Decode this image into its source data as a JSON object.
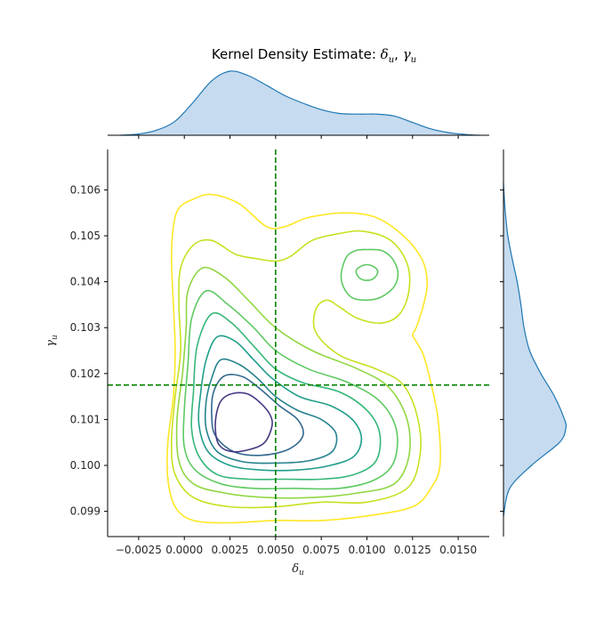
{
  "chart_data": {
    "type": "kde-joint",
    "title": "Kernel Density Estimate: δ_u, γ_u",
    "title_display": {
      "prefix": "Kernel Density Estimate: ",
      "var1": "δ",
      "var2": "γ",
      "sub": "u",
      "sep": ", "
    },
    "xlabel": "δ_u",
    "ylabel": "γ_u",
    "xlim": [
      -0.0042,
      0.0167
    ],
    "ylim": [
      0.09845,
      0.10688
    ],
    "xticks": [
      -0.0025,
      0.0,
      0.0025,
      0.005,
      0.0075,
      0.01,
      0.0125,
      0.015
    ],
    "xtick_labels": [
      "−0.0025",
      "0.0000",
      "0.0025",
      "0.0050",
      "0.0075",
      "0.0100",
      "0.0125",
      "0.0150"
    ],
    "yticks": [
      0.099,
      0.1,
      0.101,
      0.102,
      0.103,
      0.104,
      0.105,
      0.106
    ],
    "ytick_labels": [
      "0.099",
      "0.100",
      "0.101",
      "0.102",
      "0.103",
      "0.104",
      "0.105",
      "0.106"
    ],
    "reference_lines": {
      "vertical_x": 0.005,
      "horizontal_y": 0.10175,
      "color": "#008000",
      "style": "dashed"
    },
    "grid": false,
    "marginal_x": {
      "x": [
        -0.0035,
        -0.0025,
        -0.0015,
        -0.0005,
        0.0005,
        0.0015,
        0.0025,
        0.0035,
        0.0045,
        0.0055,
        0.0065,
        0.0075,
        0.0085,
        0.0095,
        0.0105,
        0.0115,
        0.0125,
        0.0135,
        0.0145,
        0.0155,
        0.0162
      ],
      "density": [
        0.0,
        0.02,
        0.08,
        0.22,
        0.52,
        0.85,
        1.0,
        0.93,
        0.78,
        0.62,
        0.5,
        0.4,
        0.34,
        0.33,
        0.33,
        0.3,
        0.2,
        0.1,
        0.04,
        0.01,
        0.0
      ]
    },
    "marginal_y": {
      "y": [
        0.0989,
        0.0995,
        0.1,
        0.1005,
        0.1008,
        0.101,
        0.1015,
        0.102,
        0.1025,
        0.103,
        0.1035,
        0.104,
        0.1045,
        0.105,
        0.1055,
        0.106,
        0.10615
      ],
      "density": [
        0.0,
        0.1,
        0.45,
        0.9,
        1.0,
        0.98,
        0.82,
        0.6,
        0.42,
        0.33,
        0.28,
        0.22,
        0.14,
        0.07,
        0.03,
        0.005,
        0.0
      ]
    },
    "density_series_color": "#1f77b4",
    "density_fill_color": "#c6dbef",
    "contour_levels": [
      {
        "level": 1,
        "color": "#fde725",
        "points": [
          [
            0.0005,
            0.1058
          ],
          [
            0.0015,
            0.1059
          ],
          [
            0.003,
            0.1057
          ],
          [
            0.0045,
            0.1052
          ],
          [
            0.0055,
            0.1052
          ],
          [
            0.0068,
            0.1054
          ],
          [
            0.0088,
            0.1055
          ],
          [
            0.0105,
            0.1054
          ],
          [
            0.012,
            0.105
          ],
          [
            0.013,
            0.1045
          ],
          [
            0.0133,
            0.104
          ],
          [
            0.0131,
            0.1035
          ],
          [
            0.0127,
            0.103
          ],
          [
            0.0125,
            0.10285
          ],
          [
            0.0127,
            0.1027
          ],
          [
            0.0131,
            0.1024
          ],
          [
            0.0135,
            0.1018
          ],
          [
            0.0139,
            0.101
          ],
          [
            0.014,
            0.1
          ],
          [
            0.0135,
            0.0995
          ],
          [
            0.0125,
            0.0991
          ],
          [
            0.01,
            0.0989
          ],
          [
            0.0075,
            0.0988
          ],
          [
            0.005,
            0.0988
          ],
          [
            0.0025,
            0.09875
          ],
          [
            0.0005,
            0.0988
          ],
          [
            -0.0005,
            0.0991
          ],
          [
            -0.0009,
            0.0997
          ],
          [
            -0.0009,
            0.1005
          ],
          [
            -0.0006,
            0.1015
          ],
          [
            -0.0005,
            0.1025
          ],
          [
            -0.0006,
            0.1035
          ],
          [
            -0.0007,
            0.1045
          ],
          [
            -0.0006,
            0.1052
          ],
          [
            -0.0003,
            0.1056
          ]
        ]
      },
      {
        "level": 2,
        "color": "#c8e020",
        "points": [
          [
            0.0005,
            0.1048
          ],
          [
            0.0015,
            0.1049
          ],
          [
            0.0028,
            0.1046
          ],
          [
            0.004,
            0.1045
          ],
          [
            0.005,
            0.10445
          ],
          [
            0.0058,
            0.10455
          ],
          [
            0.007,
            0.1049
          ],
          [
            0.0085,
            0.10505
          ],
          [
            0.0098,
            0.1051
          ],
          [
            0.0113,
            0.1049
          ],
          [
            0.0122,
            0.1044
          ],
          [
            0.0123,
            0.1038
          ],
          [
            0.0118,
            0.1033
          ],
          [
            0.0108,
            0.1031
          ],
          [
            0.0095,
            0.1032
          ],
          [
            0.0085,
            0.10345
          ],
          [
            0.0078,
            0.1036
          ],
          [
            0.0072,
            0.1034
          ],
          [
            0.0072,
            0.1029
          ],
          [
            0.0085,
            0.1024
          ],
          [
            0.0105,
            0.1021
          ],
          [
            0.012,
            0.10175
          ],
          [
            0.0128,
            0.101
          ],
          [
            0.0129,
            0.1002
          ],
          [
            0.0122,
            0.0995
          ],
          [
            0.01,
            0.0992
          ],
          [
            0.0075,
            0.0992
          ],
          [
            0.005,
            0.0991
          ],
          [
            0.0025,
            0.0991
          ],
          [
            0.0005,
            0.0993
          ],
          [
            -0.0005,
            0.0998
          ],
          [
            -0.0007,
            0.1005
          ],
          [
            -0.0005,
            0.1015
          ],
          [
            -0.0002,
            0.1025
          ],
          [
            -0.0003,
            0.1035
          ],
          [
            -0.0002,
            0.1043
          ]
        ]
      },
      {
        "level": 3,
        "color": "#90d743",
        "points": [
          [
            0.001,
            0.1043
          ],
          [
            0.0022,
            0.1041
          ],
          [
            0.0035,
            0.1036
          ],
          [
            0.005,
            0.103
          ],
          [
            0.007,
            0.1025
          ],
          [
            0.0095,
            0.1021
          ],
          [
            0.0112,
            0.1017
          ],
          [
            0.0122,
            0.101
          ],
          [
            0.0123,
            0.1002
          ],
          [
            0.0115,
            0.0996
          ],
          [
            0.0095,
            0.0994
          ],
          [
            0.007,
            0.0993
          ],
          [
            0.0045,
            0.0993
          ],
          [
            0.0022,
            0.0994
          ],
          [
            0.0005,
            0.0996
          ],
          [
            -0.0003,
            0.1001
          ],
          [
            -0.0004,
            0.101
          ],
          [
            -0.0001,
            0.102
          ],
          [
            0.0001,
            0.103
          ],
          [
            0.0002,
            0.1038
          ]
        ]
      },
      {
        "level": 4,
        "color": "#5ec962",
        "points": [
          [
            0.0012,
            0.1038
          ],
          [
            0.0024,
            0.1035
          ],
          [
            0.0038,
            0.103
          ],
          [
            0.005,
            0.1025
          ],
          [
            0.0068,
            0.1021
          ],
          [
            0.009,
            0.1018
          ],
          [
            0.0107,
            0.1014
          ],
          [
            0.0116,
            0.1008
          ],
          [
            0.0115,
            0.1001
          ],
          [
            0.0105,
            0.0997
          ],
          [
            0.0085,
            0.0995
          ],
          [
            0.006,
            0.0995
          ],
          [
            0.0038,
            0.0995
          ],
          [
            0.002,
            0.0996
          ],
          [
            0.0006,
            0.0999
          ],
          [
            0.0,
            0.1004
          ],
          [
            0.0,
            0.1012
          ],
          [
            0.0002,
            0.1022
          ],
          [
            0.0004,
            0.1032
          ]
        ]
      },
      {
        "level": 5,
        "color": "#35b779",
        "points": [
          [
            0.0015,
            0.1033
          ],
          [
            0.0026,
            0.1031
          ],
          [
            0.0038,
            0.1026
          ],
          [
            0.005,
            0.1021
          ],
          [
            0.0065,
            0.1018
          ],
          [
            0.0085,
            0.1016
          ],
          [
            0.01,
            0.1012
          ],
          [
            0.0107,
            0.1007
          ],
          [
            0.0105,
            0.1001
          ],
          [
            0.0093,
            0.0998
          ],
          [
            0.0075,
            0.0997
          ],
          [
            0.0055,
            0.0997
          ],
          [
            0.0035,
            0.0997
          ],
          [
            0.0018,
            0.0998
          ],
          [
            0.0008,
            0.1002
          ],
          [
            0.0004,
            0.1008
          ],
          [
            0.0005,
            0.1016
          ],
          [
            0.0007,
            0.1026
          ]
        ]
      },
      {
        "level": 6,
        "color": "#1f9e89",
        "points": [
          [
            0.0018,
            0.1028
          ],
          [
            0.0028,
            0.1027
          ],
          [
            0.0038,
            0.1023
          ],
          [
            0.0048,
            0.1019
          ],
          [
            0.0063,
            0.1015
          ],
          [
            0.008,
            0.1013
          ],
          [
            0.0092,
            0.101
          ],
          [
            0.0097,
            0.1006
          ],
          [
            0.0093,
            0.1002
          ],
          [
            0.008,
            0.1
          ],
          [
            0.0062,
            0.0999
          ],
          [
            0.0042,
            0.0999
          ],
          [
            0.0025,
            0.1
          ],
          [
            0.0013,
            0.1003
          ],
          [
            0.0008,
            0.1009
          ],
          [
            0.0009,
            0.1016
          ],
          [
            0.0012,
            0.1023
          ]
        ]
      },
      {
        "level": 7,
        "color": "#26828e",
        "points": [
          [
            0.002,
            0.1023
          ],
          [
            0.003,
            0.1022
          ],
          [
            0.004,
            0.1019
          ],
          [
            0.005,
            0.1015
          ],
          [
            0.0062,
            0.1012
          ],
          [
            0.0075,
            0.101
          ],
          [
            0.0083,
            0.1007
          ],
          [
            0.0081,
            0.1003
          ],
          [
            0.0068,
            0.1001
          ],
          [
            0.005,
            0.10005
          ],
          [
            0.0032,
            0.10008
          ],
          [
            0.0018,
            0.1003
          ],
          [
            0.0012,
            0.1008
          ],
          [
            0.0012,
            0.1014
          ],
          [
            0.0015,
            0.1019
          ]
        ]
      },
      {
        "level": 8,
        "color": "#31688e",
        "points": [
          [
            0.0022,
            0.10195
          ],
          [
            0.0032,
            0.10193
          ],
          [
            0.0042,
            0.10165
          ],
          [
            0.0052,
            0.1013
          ],
          [
            0.0062,
            0.101
          ],
          [
            0.0065,
            0.10065
          ],
          [
            0.0057,
            0.10035
          ],
          [
            0.0042,
            0.10022
          ],
          [
            0.0027,
            0.1003
          ],
          [
            0.0017,
            0.10065
          ],
          [
            0.0015,
            0.1011
          ],
          [
            0.0016,
            0.1016
          ]
        ]
      },
      {
        "level": 9,
        "color": "#443983",
        "points": [
          [
            0.0027,
            0.10157
          ],
          [
            0.0035,
            0.10155
          ],
          [
            0.0042,
            0.10135
          ],
          [
            0.0047,
            0.1011
          ],
          [
            0.0048,
            0.10085
          ],
          [
            0.0044,
            0.1005
          ],
          [
            0.0036,
            0.10035
          ],
          [
            0.0026,
            0.1003
          ],
          [
            0.0019,
            0.10045
          ],
          [
            0.0017,
            0.1008
          ],
          [
            0.0018,
            0.1012
          ],
          [
            0.0021,
            0.10145
          ]
        ]
      },
      {
        "level": 5,
        "color": "#5ec962",
        "points": [
          [
            0.01,
            0.1047
          ],
          [
            0.0108,
            0.10468
          ],
          [
            0.0114,
            0.1045
          ],
          [
            0.0117,
            0.1042
          ],
          [
            0.0115,
            0.1039
          ],
          [
            0.0108,
            0.10367
          ],
          [
            0.01,
            0.1036
          ],
          [
            0.0092,
            0.10365
          ],
          [
            0.0087,
            0.1039
          ],
          [
            0.0086,
            0.1042
          ],
          [
            0.0089,
            0.10455
          ],
          [
            0.0094,
            0.10468
          ]
        ]
      },
      {
        "level": 9,
        "color": "#5ec962",
        "points": [
          [
            0.01,
            0.10437
          ],
          [
            0.0104,
            0.10432
          ],
          [
            0.0106,
            0.10422
          ],
          [
            0.0104,
            0.10408
          ],
          [
            0.01,
            0.10403
          ],
          [
            0.0096,
            0.10408
          ],
          [
            0.0094,
            0.10422
          ],
          [
            0.0096,
            0.10432
          ]
        ]
      }
    ]
  }
}
